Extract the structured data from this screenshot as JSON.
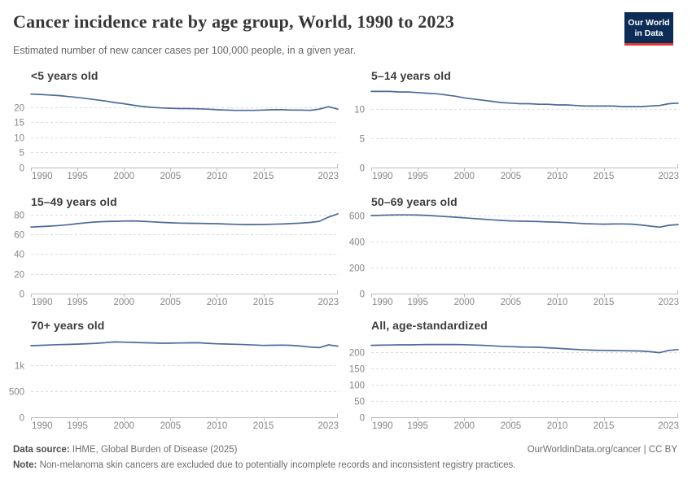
{
  "header": {
    "title": "Cancer incidence rate by age group, World, 1990 to 2023",
    "subtitle": "Estimated number of new cancer cases per 100,000 people, in a given year."
  },
  "logo": {
    "line1": "Our World",
    "line2": "in Data",
    "bg_color": "#0d2d57",
    "accent_color": "#d93a34"
  },
  "footer": {
    "source_label": "Data source:",
    "source_text": " IHME, Global Burden of Disease (2025)",
    "credit": "OurWorldinData.org/cancer | CC BY",
    "note_label": "Note:",
    "note_text": " Non-melanoma skin cancers are excluded due to potentially incomplete records and inconsistent registry practices."
  },
  "style": {
    "line_color": "#4C6A9C",
    "gridline_color": "#dcdcdc",
    "axis_color": "#bcbcbc",
    "tick_label_color": "#878787"
  },
  "chart_data": [
    {
      "type": "line",
      "title": "<5 years old",
      "series_name": "World",
      "x_range": [
        1990,
        2023
      ],
      "x_step": 1,
      "ylim": [
        0,
        26.75
      ],
      "yticks": [
        {
          "value": 0,
          "label": "0"
        },
        {
          "value": 5,
          "label": "5"
        },
        {
          "value": 10,
          "label": "10"
        },
        {
          "value": 15,
          "label": "15"
        },
        {
          "value": 20,
          "label": "20"
        }
      ],
      "xticks": [
        1990,
        1995,
        2000,
        2005,
        2010,
        2015
      ],
      "xlabels": [
        {
          "year": 1990,
          "label": "1990"
        },
        {
          "year": 1995,
          "label": "1995"
        },
        {
          "year": 2000,
          "label": "2000"
        },
        {
          "year": 2005,
          "label": "2005"
        },
        {
          "year": 2010,
          "label": "2010"
        },
        {
          "year": 2015,
          "label": "2015"
        },
        {
          "year": 2023,
          "label": "2023"
        }
      ],
      "values": [
        24.4,
        24.3,
        24.1,
        23.9,
        23.6,
        23.3,
        22.9,
        22.5,
        22.1,
        21.6,
        21.2,
        20.7,
        20.3,
        20.0,
        19.8,
        19.7,
        19.6,
        19.6,
        19.5,
        19.4,
        19.2,
        19.1,
        19.0,
        19.0,
        19.0,
        19.1,
        19.2,
        19.2,
        19.1,
        19.1,
        19.0,
        19.4,
        20.2,
        19.4
      ]
    },
    {
      "type": "line",
      "title": "5–14 years old",
      "series_name": "World",
      "x_range": [
        1990,
        2023
      ],
      "x_step": 1,
      "ylim": [
        0,
        13.75
      ],
      "yticks": [
        {
          "value": 0,
          "label": "0"
        },
        {
          "value": 5,
          "label": "5"
        },
        {
          "value": 10,
          "label": "10"
        }
      ],
      "xticks": [
        1990,
        1995,
        2000,
        2005,
        2010,
        2015
      ],
      "xlabels": [
        {
          "year": 1990,
          "label": "1990"
        },
        {
          "year": 1995,
          "label": "1995"
        },
        {
          "year": 2000,
          "label": "2000"
        },
        {
          "year": 2005,
          "label": "2005"
        },
        {
          "year": 2010,
          "label": "2010"
        },
        {
          "year": 2015,
          "label": "2015"
        },
        {
          "year": 2023,
          "label": "2023"
        }
      ],
      "values": [
        13.0,
        13.0,
        13.0,
        12.9,
        12.9,
        12.8,
        12.7,
        12.6,
        12.4,
        12.2,
        11.9,
        11.7,
        11.5,
        11.3,
        11.1,
        11.0,
        10.9,
        10.9,
        10.8,
        10.8,
        10.7,
        10.7,
        10.6,
        10.5,
        10.5,
        10.5,
        10.5,
        10.4,
        10.4,
        10.4,
        10.5,
        10.6,
        10.9,
        11.0
      ]
    },
    {
      "type": "line",
      "title": "15–49 years old",
      "series_name": "World",
      "x_range": [
        1990,
        2023
      ],
      "x_step": 1,
      "ylim": [
        0,
        81.5
      ],
      "yticks": [
        {
          "value": 0,
          "label": "0"
        },
        {
          "value": 20,
          "label": "20"
        },
        {
          "value": 40,
          "label": "40"
        },
        {
          "value": 60,
          "label": "60"
        },
        {
          "value": 80,
          "label": "80"
        }
      ],
      "xticks": [
        1990,
        1995,
        2000,
        2005,
        2010,
        2015
      ],
      "xlabels": [
        {
          "year": 1990,
          "label": "1990"
        },
        {
          "year": 1995,
          "label": "1995"
        },
        {
          "year": 2000,
          "label": "2000"
        },
        {
          "year": 2005,
          "label": "2005"
        },
        {
          "year": 2010,
          "label": "2010"
        },
        {
          "year": 2015,
          "label": "2015"
        },
        {
          "year": 2023,
          "label": "2023"
        }
      ],
      "values": [
        67.3,
        67.8,
        68.3,
        68.9,
        69.7,
        70.8,
        71.8,
        72.5,
        72.9,
        73.2,
        73.4,
        73.6,
        73.2,
        72.7,
        72.1,
        71.7,
        71.4,
        71.2,
        71.1,
        70.9,
        70.8,
        70.4,
        70.1,
        69.9,
        69.9,
        70.0,
        70.2,
        70.5,
        70.9,
        71.4,
        72.0,
        73.2,
        77.5,
        80.8
      ]
    },
    {
      "type": "line",
      "title": "50–69 years old",
      "series_name": "World",
      "x_range": [
        1990,
        2023
      ],
      "x_step": 1,
      "ylim": [
        0,
        619
      ],
      "yticks": [
        {
          "value": 0,
          "label": "0"
        },
        {
          "value": 200,
          "label": "200"
        },
        {
          "value": 400,
          "label": "400"
        },
        {
          "value": 600,
          "label": "600"
        }
      ],
      "xticks": [
        1990,
        1995,
        2000,
        2005,
        2010,
        2015
      ],
      "xlabels": [
        {
          "year": 1990,
          "label": "1990"
        },
        {
          "year": 1995,
          "label": "1995"
        },
        {
          "year": 2000,
          "label": "2000"
        },
        {
          "year": 2005,
          "label": "2005"
        },
        {
          "year": 2010,
          "label": "2010"
        },
        {
          "year": 2015,
          "label": "2015"
        },
        {
          "year": 2023,
          "label": "2023"
        }
      ],
      "values": [
        600,
        602,
        604,
        605,
        605,
        604,
        601,
        597,
        592,
        588,
        583,
        577,
        572,
        567,
        563,
        559,
        557,
        556,
        554,
        551,
        549,
        546,
        542,
        538,
        536,
        534,
        535,
        536,
        534,
        528,
        519,
        511,
        525,
        531
      ]
    },
    {
      "type": "line",
      "title": "70+ years old",
      "series_name": "World",
      "x_range": [
        1990,
        2023
      ],
      "x_step": 1,
      "ylim": [
        0,
        1547
      ],
      "yticks": [
        {
          "value": 0,
          "label": "0"
        },
        {
          "value": 500,
          "label": "500"
        },
        {
          "value": 1000,
          "label": "1k"
        }
      ],
      "xticks": [
        1990,
        1995,
        2000,
        2005,
        2010,
        2015
      ],
      "xlabels": [
        {
          "year": 1990,
          "label": "1990"
        },
        {
          "year": 1995,
          "label": "1995"
        },
        {
          "year": 2000,
          "label": "2000"
        },
        {
          "year": 2005,
          "label": "2005"
        },
        {
          "year": 2010,
          "label": "2010"
        },
        {
          "year": 2015,
          "label": "2015"
        },
        {
          "year": 2023,
          "label": "2023"
        }
      ],
      "values": [
        1375,
        1382,
        1388,
        1395,
        1398,
        1405,
        1413,
        1421,
        1433,
        1447,
        1443,
        1437,
        1432,
        1428,
        1422,
        1424,
        1427,
        1430,
        1432,
        1421,
        1411,
        1406,
        1402,
        1396,
        1387,
        1380,
        1383,
        1386,
        1382,
        1368,
        1348,
        1337,
        1390,
        1365
      ]
    },
    {
      "type": "line",
      "title": "All, age-standardized",
      "series_name": "World",
      "x_range": [
        1990,
        2023
      ],
      "x_step": 1,
      "ylim": [
        0,
        247.5
      ],
      "yticks": [
        {
          "value": 0,
          "label": "0"
        },
        {
          "value": 50,
          "label": "50"
        },
        {
          "value": 100,
          "label": "100"
        },
        {
          "value": 150,
          "label": "150"
        },
        {
          "value": 200,
          "label": "200"
        }
      ],
      "xticks": [
        1990,
        1995,
        2000,
        2005,
        2010,
        2015
      ],
      "xlabels": [
        {
          "year": 1990,
          "label": "1990"
        },
        {
          "year": 1995,
          "label": "1995"
        },
        {
          "year": 2000,
          "label": "2000"
        },
        {
          "year": 2005,
          "label": "2005"
        },
        {
          "year": 2010,
          "label": "2010"
        },
        {
          "year": 2015,
          "label": "2015"
        },
        {
          "year": 2023,
          "label": "2023"
        }
      ],
      "values": [
        221,
        221.5,
        222,
        222.5,
        222.5,
        223,
        223.5,
        223.5,
        223.5,
        223.5,
        223,
        222,
        221,
        219.5,
        218,
        217,
        216,
        215.5,
        215,
        213.5,
        212,
        210,
        208.5,
        207,
        206,
        205.5,
        205,
        204.5,
        204,
        203.5,
        201.5,
        198.5,
        205.5,
        208
      ]
    }
  ]
}
